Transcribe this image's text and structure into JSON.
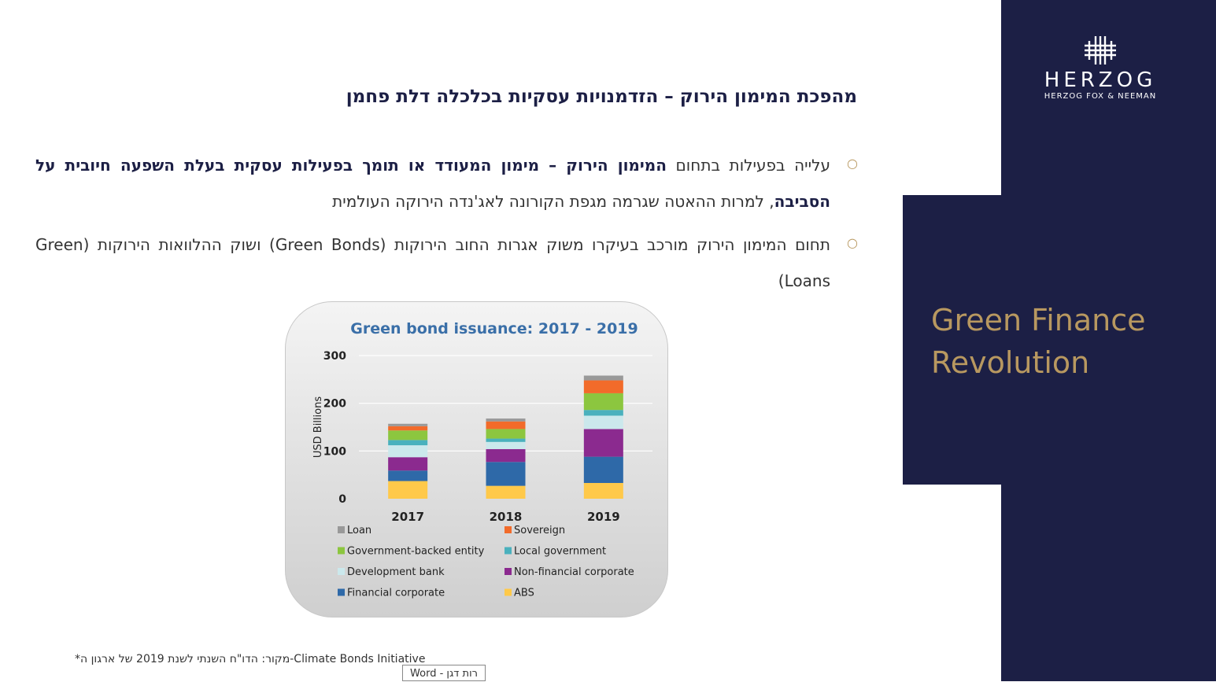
{
  "brand": {
    "name": "HERZOG",
    "sub": "HERZOG FOX & NEEMAN",
    "navy": "#1c1f45",
    "gold": "#b89860"
  },
  "side_title": {
    "line1": "Green Finance",
    "line2": "Revolution"
  },
  "title": "מהפכת המימון הירוק – הזדמנויות עסקיות בכלכלה דלת פחמן",
  "bullets": [
    {
      "pre": "עלייה בפעילות בתחום ",
      "bold": "המימון הירוק – מימון המעודד או תומך בפעילות עסקית בעלת השפעה חיובית על הסביבה",
      "post": ", למרות ההאטה שגרמה מגפת הקורונה לאג'נדה הירוקה העולמית"
    },
    {
      "text": "תחום המימון הירוק מורכב בעיקרו משוק אגרות החוב הירוקות (Green Bonds) ושוק ההלוואות הירוקות (Green Loans)"
    }
  ],
  "chart_data": {
    "type": "bar",
    "stacked": true,
    "title": "Green bond issuance: 2017 - 2019",
    "ylabel": "USD Billions",
    "xlabel": "",
    "ylim": [
      0,
      300
    ],
    "yticks": [
      0,
      100,
      200,
      300
    ],
    "categories": [
      "2017",
      "2018",
      "2019"
    ],
    "grid": true,
    "legend_placement": "bottom",
    "series": [
      {
        "name": "ABS",
        "color": "#ffc94a",
        "values": [
          37,
          27,
          33
        ]
      },
      {
        "name": "Financial corporate",
        "color": "#2e69a8",
        "values": [
          22,
          50,
          55
        ]
      },
      {
        "name": "Non-financial corporate",
        "color": "#8b2a8f",
        "values": [
          28,
          27,
          58
        ]
      },
      {
        "name": "Development bank",
        "color": "#cbe8ec",
        "values": [
          25,
          15,
          28
        ]
      },
      {
        "name": "Local government",
        "color": "#4ab1bd",
        "values": [
          11,
          7,
          12
        ]
      },
      {
        "name": "Government-backed entity",
        "color": "#8cc63f",
        "values": [
          20,
          20,
          35
        ]
      },
      {
        "name": "Sovereign",
        "color": "#f26b2a",
        "values": [
          9,
          16,
          27
        ]
      },
      {
        "name": "Loan",
        "color": "#999999",
        "values": [
          5,
          6,
          10
        ]
      }
    ],
    "legend_order": [
      "Loan",
      "Sovereign",
      "Government-backed entity",
      "Local government",
      "Development bank",
      "Non-financial corporate",
      "Financial corporate",
      "ABS"
    ]
  },
  "footnote": "*מקור: הדו\"ח השנתי לשנת 2019 של ארגון ה-Climate Bonds Initiative",
  "comment_tag": "Word - רות דגן"
}
